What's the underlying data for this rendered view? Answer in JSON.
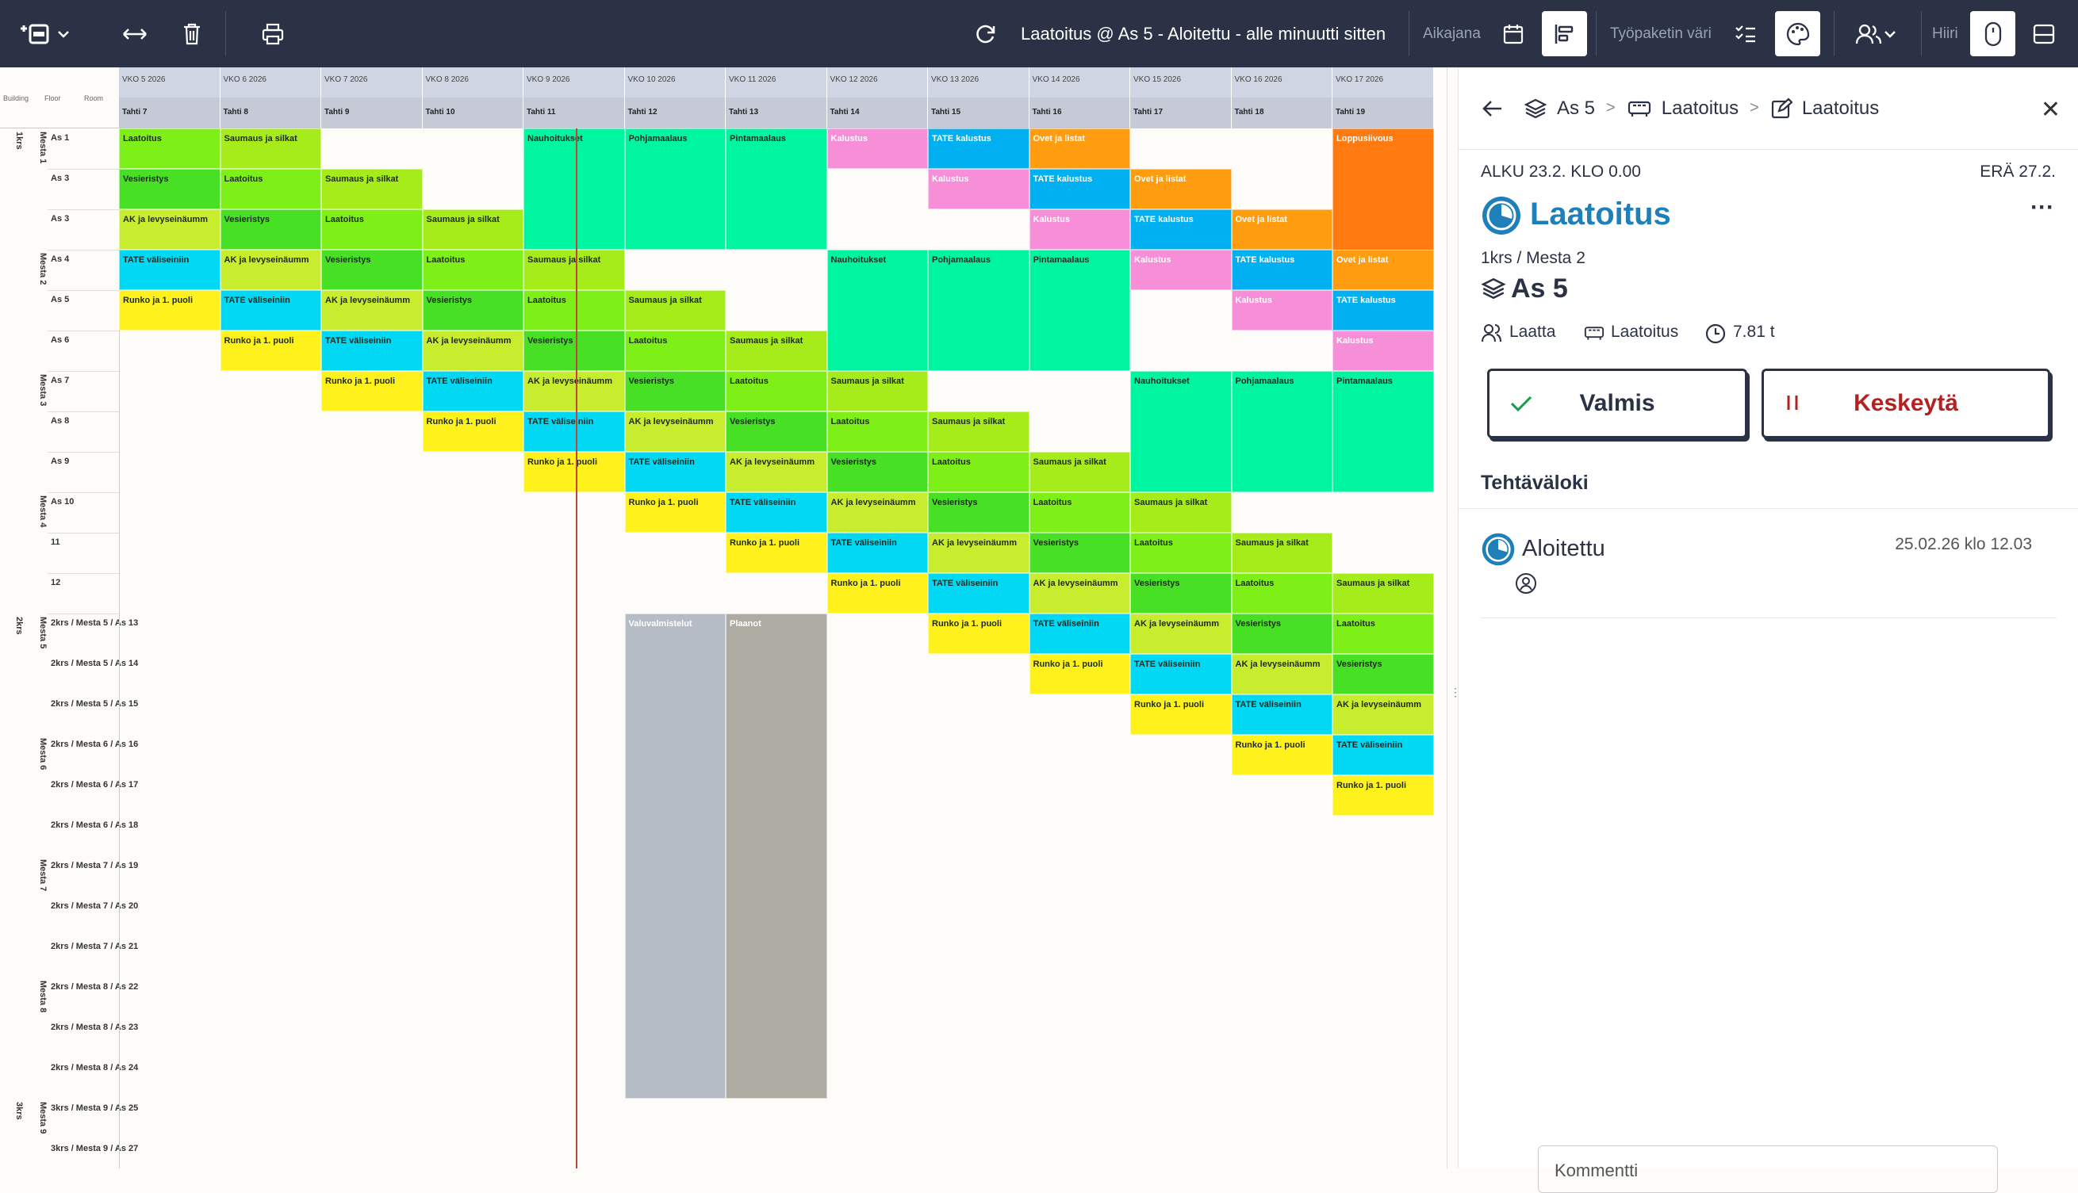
{
  "toolbar": {
    "title": "Laatoitus @ As 5 - Aloitettu - alle minuutti sitten",
    "timeline_label": "Aikajana",
    "color_label": "Työpaketin väri",
    "mouse_label": "Hiiri"
  },
  "gantt": {
    "header_left": {
      "building": "Building",
      "floor": "Floor",
      "room": "Room"
    },
    "weeks": [
      "VKO 5 2026",
      "VKO 6 2026",
      "VKO 7 2026",
      "VKO 8 2026",
      "VKO 9 2026",
      "VKO 10 2026",
      "VKO 11 2026",
      "VKO 12 2026",
      "VKO 13 2026",
      "VKO 14 2026",
      "VKO 15 2026",
      "VKO 16 2026",
      "VKO 17 2026"
    ],
    "phases": [
      "Tahti 7",
      "Tahti 8",
      "Tahti 9",
      "Tahti 10",
      "Tahti 11",
      "Tahti 12",
      "Tahti 13",
      "Tahti 14",
      "Tahti 15",
      "Tahti 16",
      "Tahti 17",
      "Tahti 18",
      "Tahti 19"
    ],
    "groups": [
      {
        "label": "1krs",
        "row": 0,
        "span": 12,
        "col": 0
      },
      {
        "label": "Mesta 1",
        "row": 0,
        "span": 3,
        "col": 1
      },
      {
        "label": "Mesta 2",
        "row": 3,
        "span": 3,
        "col": 1
      },
      {
        "label": "Mesta 3",
        "row": 6,
        "span": 3,
        "col": 1
      },
      {
        "label": "Mesta 4",
        "row": 9,
        "span": 3,
        "col": 1
      },
      {
        "label": "2krs",
        "row": 12,
        "span": 12,
        "col": 0
      },
      {
        "label": "Mesta 5",
        "row": 12,
        "span": 3,
        "col": 1
      },
      {
        "label": "Mesta 6",
        "row": 15,
        "span": 3,
        "col": 1
      },
      {
        "label": "Mesta 7",
        "row": 18,
        "span": 3,
        "col": 1
      },
      {
        "label": "Mesta 8",
        "row": 21,
        "span": 3,
        "col": 1
      },
      {
        "label": "3krs",
        "row": 24,
        "span": 2,
        "col": 0
      },
      {
        "label": "Mesta 9",
        "row": 24,
        "span": 2,
        "col": 1
      }
    ],
    "rows": [
      "As 1",
      "As 3",
      "As 3",
      "As 4",
      "As 5",
      "As 6",
      "As 7",
      "As 8",
      "As 9",
      "As 10",
      "11",
      "12",
      "2krs / Mesta 5 / As 13",
      "2krs / Mesta 5 / As 14",
      "2krs / Mesta 5 / As 15",
      "2krs / Mesta 6 / As 16",
      "2krs / Mesta 6 / As 17",
      "2krs / Mesta 6 / As 18",
      "2krs / Mesta 7 / As 19",
      "2krs / Mesta 7 / As 20",
      "2krs / Mesta 7 / As 21",
      "2krs / Mesta 8 / As 22",
      "2krs / Mesta 8 / As 23",
      "2krs / Mesta 8 / As 24",
      "3krs / Mesta 9 / As 25",
      "3krs / Mesta 9 / As 27"
    ],
    "colors": {
      "nauh": "#00f5a0",
      "pohja": "#00f5a0",
      "pinta": "#00f5a0",
      "saum": "#a6ec1a",
      "laat": "#7ef018",
      "vesi": "#48e024",
      "ak": "#c8ec2e",
      "tate": "#00d8f4",
      "runko": "#fff21c",
      "kalustus": "#f78ed8",
      "tatekal": "#00b0f0",
      "ovet": "#ff9c10",
      "loppu": "#ff7a10",
      "valu": "#b5bcc6",
      "plaanot": "#aeaba3"
    },
    "tasks": [
      {
        "r": 0,
        "c": 0,
        "s": 1,
        "t": "Laatoitus",
        "k": "laat"
      },
      {
        "r": 0,
        "c": 1,
        "s": 1,
        "t": "Saumaus ja silkat",
        "k": "saum"
      },
      {
        "r": 0,
        "c": 4,
        "s": 1,
        "h": 3,
        "t": "Nauhoitukset",
        "k": "nauh"
      },
      {
        "r": 0,
        "c": 5,
        "s": 1,
        "h": 3,
        "t": "Pohjamaalaus",
        "k": "pohja"
      },
      {
        "r": 0,
        "c": 6,
        "s": 1,
        "h": 3,
        "t": "Pintamaalaus",
        "k": "pinta"
      },
      {
        "r": 0,
        "c": 7,
        "s": 1,
        "t": "Kalustus",
        "k": "kalustus",
        "light": true
      },
      {
        "r": 0,
        "c": 8,
        "s": 1,
        "t": "TATE kalustus",
        "k": "tatekal",
        "light": true
      },
      {
        "r": 0,
        "c": 9,
        "s": 1,
        "t": "Ovet ja listat",
        "k": "ovet",
        "light": true
      },
      {
        "r": 0,
        "c": 12,
        "s": 1,
        "h": 9,
        "t": "Loppusiivous",
        "k": "loppu",
        "light": true
      },
      {
        "r": 1,
        "c": 0,
        "s": 1,
        "t": "Vesieristys",
        "k": "vesi",
        "pre": "mm "
      },
      {
        "r": 1,
        "c": 1,
        "s": 1,
        "t": "Laatoitus",
        "k": "laat"
      },
      {
        "r": 1,
        "c": 2,
        "s": 1,
        "t": "Saumaus ja silkat",
        "k": "saum"
      },
      {
        "r": 1,
        "c": 8,
        "s": 1,
        "t": "Kalustus",
        "k": "kalustus",
        "light": true
      },
      {
        "r": 1,
        "c": 9,
        "s": 1,
        "t": "TATE kalustus",
        "k": "tatekal",
        "light": true
      },
      {
        "r": 1,
        "c": 10,
        "s": 1,
        "t": "Ovet ja listat",
        "k": "ovet",
        "light": true
      },
      {
        "r": 2,
        "c": 0,
        "s": 1,
        "t": "AK ja levyseinäumm",
        "k": "ak"
      },
      {
        "r": 2,
        "c": 1,
        "s": 1,
        "t": "Vesieristys",
        "k": "vesi"
      },
      {
        "r": 2,
        "c": 2,
        "s": 1,
        "t": "Laatoitus",
        "k": "laat"
      },
      {
        "r": 2,
        "c": 3,
        "s": 1,
        "t": "Saumaus ja silkat",
        "k": "saum"
      },
      {
        "r": 2,
        "c": 9,
        "s": 1,
        "t": "Kalustus",
        "k": "kalustus",
        "light": true
      },
      {
        "r": 2,
        "c": 10,
        "s": 1,
        "t": "TATE kalustus",
        "k": "tatekal",
        "light": true
      },
      {
        "r": 2,
        "c": 11,
        "s": 1,
        "t": "Ovet ja listat",
        "k": "ovet",
        "light": true
      },
      {
        "r": 3,
        "c": 0,
        "s": 1,
        "t": "TATE väliseiniin",
        "k": "tate"
      },
      {
        "r": 3,
        "c": 1,
        "s": 1,
        "t": "AK ja levyseinäumm",
        "k": "ak"
      },
      {
        "r": 3,
        "c": 2,
        "s": 1,
        "t": "Vesieristys",
        "k": "vesi"
      },
      {
        "r": 3,
        "c": 3,
        "s": 1,
        "t": "Laatoitus",
        "k": "laat"
      },
      {
        "r": 3,
        "c": 4,
        "s": 1,
        "t": "Saumaus ja silkat",
        "k": "saum"
      },
      {
        "r": 3,
        "c": 7,
        "s": 1,
        "h": 3,
        "t": "Nauhoitukset",
        "k": "nauh"
      },
      {
        "r": 3,
        "c": 8,
        "s": 1,
        "h": 3,
        "t": "Pohjamaalaus",
        "k": "pohja"
      },
      {
        "r": 3,
        "c": 9,
        "s": 1,
        "h": 3,
        "t": "Pintamaalaus",
        "k": "pinta"
      },
      {
        "r": 3,
        "c": 10,
        "s": 1,
        "t": "Kalustus",
        "k": "kalustus",
        "light": true
      },
      {
        "r": 3,
        "c": 11,
        "s": 1,
        "t": "TATE kalustus",
        "k": "tatekal",
        "light": true
      },
      {
        "r": 3,
        "c": 12,
        "s": 1,
        "t": "Ovet ja listat",
        "k": "ovet",
        "light": true
      },
      {
        "r": 4,
        "c": 0,
        "s": 1,
        "t": "Runko ja 1. puoli",
        "k": "runko"
      },
      {
        "r": 4,
        "c": 1,
        "s": 1,
        "t": "TATE väliseiniin",
        "k": "tate"
      },
      {
        "r": 4,
        "c": 2,
        "s": 1,
        "t": "AK ja levyseinäumm",
        "k": "ak"
      },
      {
        "r": 4,
        "c": 3,
        "s": 1,
        "t": "Vesieristys",
        "k": "vesi"
      },
      {
        "r": 4,
        "c": 4,
        "s": 1,
        "t": "Laatoitus",
        "k": "laat"
      },
      {
        "r": 4,
        "c": 5,
        "s": 1,
        "t": "Saumaus ja silkat",
        "k": "saum"
      },
      {
        "r": 4,
        "c": 11,
        "s": 1,
        "t": "Kalustus",
        "k": "kalustus",
        "light": true
      },
      {
        "r": 4,
        "c": 12,
        "s": 1,
        "t": "TATE kalustus",
        "k": "tatekal",
        "light": true
      },
      {
        "r": 5,
        "c": 1,
        "s": 1,
        "t": "Runko ja 1. puoli",
        "k": "runko"
      },
      {
        "r": 5,
        "c": 2,
        "s": 1,
        "t": "TATE väliseiniin",
        "k": "tate"
      },
      {
        "r": 5,
        "c": 3,
        "s": 1,
        "t": "AK ja levyseinäumm",
        "k": "ak"
      },
      {
        "r": 5,
        "c": 4,
        "s": 1,
        "t": "Vesieristys",
        "k": "vesi"
      },
      {
        "r": 5,
        "c": 5,
        "s": 1,
        "t": "Laatoitus",
        "k": "laat"
      },
      {
        "r": 5,
        "c": 6,
        "s": 1,
        "t": "Saumaus ja silkat",
        "k": "saum"
      },
      {
        "r": 5,
        "c": 12,
        "s": 1,
        "t": "Kalustus",
        "k": "kalustus",
        "light": true
      },
      {
        "r": 6,
        "c": 2,
        "s": 1,
        "t": "Runko ja 1. puoli",
        "k": "runko"
      },
      {
        "r": 6,
        "c": 3,
        "s": 1,
        "t": "TATE väliseiniin",
        "k": "tate"
      },
      {
        "r": 6,
        "c": 4,
        "s": 1,
        "t": "AK ja levyseinäumm",
        "k": "ak"
      },
      {
        "r": 6,
        "c": 5,
        "s": 1,
        "t": "Vesieristys",
        "k": "vesi"
      },
      {
        "r": 6,
        "c": 6,
        "s": 1,
        "t": "Laatoitus",
        "k": "laat"
      },
      {
        "r": 6,
        "c": 7,
        "s": 1,
        "t": "Saumaus ja silkat",
        "k": "saum"
      },
      {
        "r": 6,
        "c": 10,
        "s": 1,
        "h": 3,
        "t": "Nauhoitukset",
        "k": "nauh"
      },
      {
        "r": 6,
        "c": 11,
        "s": 1,
        "h": 3,
        "t": "Pohjamaalaus",
        "k": "pohja"
      },
      {
        "r": 6,
        "c": 12,
        "s": 1,
        "h": 3,
        "t": "Pintamaalaus",
        "k": "pinta"
      },
      {
        "r": 7,
        "c": 3,
        "s": 1,
        "t": "Runko ja 1. puoli",
        "k": "runko"
      },
      {
        "r": 7,
        "c": 4,
        "s": 1,
        "t": "TATE väliseiniin",
        "k": "tate"
      },
      {
        "r": 7,
        "c": 5,
        "s": 1,
        "t": "AK ja levyseinäumm",
        "k": "ak"
      },
      {
        "r": 7,
        "c": 6,
        "s": 1,
        "t": "Vesieristys",
        "k": "vesi"
      },
      {
        "r": 7,
        "c": 7,
        "s": 1,
        "t": "Laatoitus",
        "k": "laat"
      },
      {
        "r": 7,
        "c": 8,
        "s": 1,
        "t": "Saumaus ja silkat",
        "k": "saum"
      },
      {
        "r": 8,
        "c": 4,
        "s": 1,
        "t": "Runko ja 1. puoli",
        "k": "runko"
      },
      {
        "r": 8,
        "c": 5,
        "s": 1,
        "t": "TATE väliseiniin",
        "k": "tate"
      },
      {
        "r": 8,
        "c": 6,
        "s": 1,
        "t": "AK ja levyseinäumm",
        "k": "ak"
      },
      {
        "r": 8,
        "c": 7,
        "s": 1,
        "t": "Vesieristys",
        "k": "vesi"
      },
      {
        "r": 8,
        "c": 8,
        "s": 1,
        "t": "Laatoitus",
        "k": "laat"
      },
      {
        "r": 8,
        "c": 9,
        "s": 1,
        "t": "Saumaus ja silkat",
        "k": "saum"
      },
      {
        "r": 9,
        "c": 5,
        "s": 1,
        "t": "Runko ja 1. puoli",
        "k": "runko"
      },
      {
        "r": 9,
        "c": 6,
        "s": 1,
        "t": "TATE väliseiniin",
        "k": "tate"
      },
      {
        "r": 9,
        "c": 7,
        "s": 1,
        "t": "AK ja levyseinäumm",
        "k": "ak"
      },
      {
        "r": 9,
        "c": 8,
        "s": 1,
        "t": "Vesieristys",
        "k": "vesi"
      },
      {
        "r": 9,
        "c": 9,
        "s": 1,
        "t": "Laatoitus",
        "k": "laat"
      },
      {
        "r": 9,
        "c": 10,
        "s": 1,
        "t": "Saumaus ja silkat",
        "k": "saum"
      },
      {
        "r": 10,
        "c": 6,
        "s": 1,
        "t": "Runko ja 1. puoli",
        "k": "runko"
      },
      {
        "r": 10,
        "c": 7,
        "s": 1,
        "t": "TATE väliseiniin",
        "k": "tate"
      },
      {
        "r": 10,
        "c": 8,
        "s": 1,
        "t": "AK ja levyseinäumm",
        "k": "ak"
      },
      {
        "r": 10,
        "c": 9,
        "s": 1,
        "t": "Vesieristys",
        "k": "vesi"
      },
      {
        "r": 10,
        "c": 10,
        "s": 1,
        "t": "Laatoitus",
        "k": "laat"
      },
      {
        "r": 10,
        "c": 11,
        "s": 1,
        "t": "Saumaus ja silkat",
        "k": "saum"
      },
      {
        "r": 11,
        "c": 7,
        "s": 1,
        "t": "Runko ja 1. puoli",
        "k": "runko"
      },
      {
        "r": 11,
        "c": 8,
        "s": 1,
        "t": "TATE väliseiniin",
        "k": "tate"
      },
      {
        "r": 11,
        "c": 9,
        "s": 1,
        "t": "AK ja levyseinäumm",
        "k": "ak"
      },
      {
        "r": 11,
        "c": 10,
        "s": 1,
        "t": "Vesieristys",
        "k": "vesi"
      },
      {
        "r": 11,
        "c": 11,
        "s": 1,
        "t": "Laatoitus",
        "k": "laat"
      },
      {
        "r": 11,
        "c": 12,
        "s": 1,
        "t": "Saumaus ja silkat",
        "k": "saum"
      },
      {
        "r": 12,
        "c": 5,
        "s": 1,
        "h": 12,
        "t": "Valuvalmistelut",
        "k": "valu",
        "light": true
      },
      {
        "r": 12,
        "c": 6,
        "s": 1,
        "h": 12,
        "t": "Plaanot",
        "k": "plaanot",
        "light": true
      },
      {
        "r": 12,
        "c": 8,
        "s": 1,
        "t": "Runko ja 1. puoli",
        "k": "runko"
      },
      {
        "r": 12,
        "c": 9,
        "s": 1,
        "t": "TATE väliseiniin",
        "k": "tate"
      },
      {
        "r": 12,
        "c": 10,
        "s": 1,
        "t": "AK ja levyseinäumm",
        "k": "ak"
      },
      {
        "r": 12,
        "c": 11,
        "s": 1,
        "t": "Vesieristys",
        "k": "vesi"
      },
      {
        "r": 12,
        "c": 12,
        "s": 1,
        "t": "Laatoitus",
        "k": "laat"
      },
      {
        "r": 13,
        "c": 9,
        "s": 1,
        "t": "Runko ja 1. puoli",
        "k": "runko"
      },
      {
        "r": 13,
        "c": 10,
        "s": 1,
        "t": "TATE väliseiniin",
        "k": "tate"
      },
      {
        "r": 13,
        "c": 11,
        "s": 1,
        "t": "AK ja levyseinäumm",
        "k": "ak"
      },
      {
        "r": 13,
        "c": 12,
        "s": 1,
        "t": "Vesieristys",
        "k": "vesi"
      },
      {
        "r": 14,
        "c": 10,
        "s": 1,
        "t": "Runko ja 1. puoli",
        "k": "runko"
      },
      {
        "r": 14,
        "c": 11,
        "s": 1,
        "t": "TATE väliseiniin",
        "k": "tate"
      },
      {
        "r": 14,
        "c": 12,
        "s": 1,
        "t": "AK ja levyseinäumm",
        "k": "ak"
      },
      {
        "r": 15,
        "c": 11,
        "s": 1,
        "t": "Runko ja 1. puoli",
        "k": "runko"
      },
      {
        "r": 15,
        "c": 12,
        "s": 1,
        "t": "TATE väliseiniin",
        "k": "tate"
      },
      {
        "r": 16,
        "c": 12,
        "s": 1,
        "t": "Runko ja 1. puoli",
        "k": "runko"
      }
    ]
  },
  "panel": {
    "breadcrumb": [
      "As 5",
      "Laatoitus",
      "Laatoitus"
    ],
    "start": "ALKU 23.2. KLO 0.00",
    "due": "ERÄ 27.2.",
    "task_title": "Laatoitus",
    "location_path": "1krs / Mesta 2",
    "location_name": "As 5",
    "meta_team": "Laatta",
    "meta_package": "Laatoitus",
    "meta_hours": "7.81 t",
    "done_label": "Valmis",
    "pause_label": "Keskeytä",
    "log_title": "Tehtäväloki",
    "log_entry_status": "Aloitettu",
    "log_entry_time": "25.02.26 klo 12.03",
    "comment_placeholder": "Kommentti",
    "accent_color": "#1f7fb8",
    "pause_color": "#b22222"
  }
}
